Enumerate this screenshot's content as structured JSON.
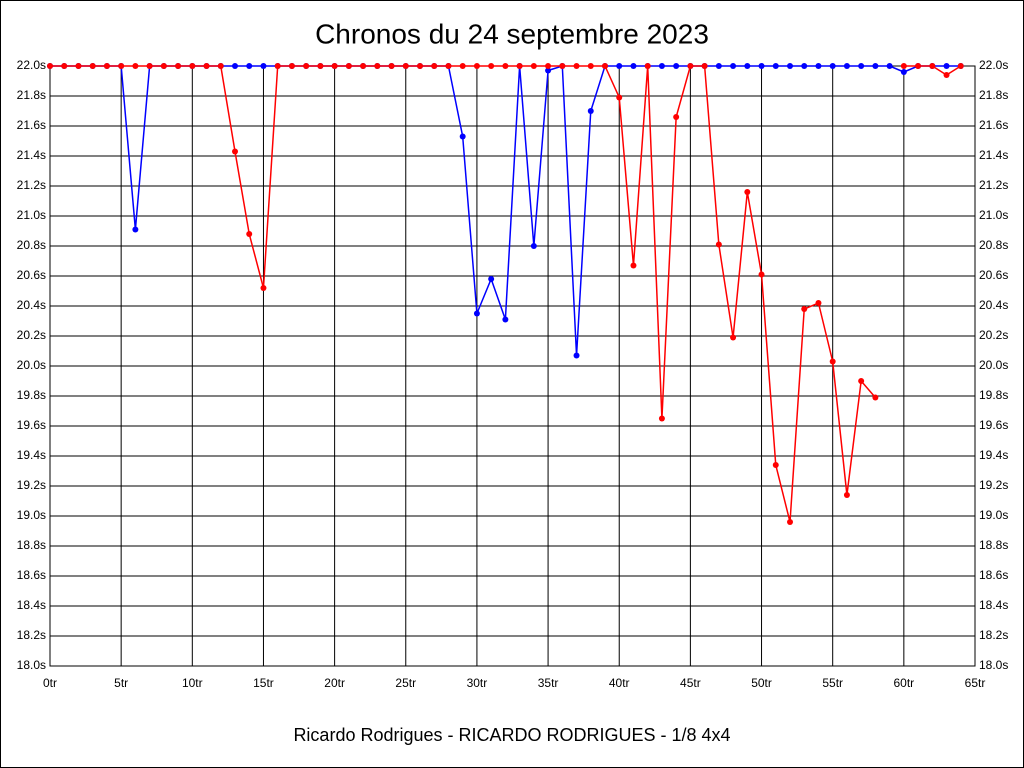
{
  "chart_data": {
    "type": "line",
    "title": "Chronos du 24 septembre 2023",
    "footer": "Ricardo Rodrigues - RICARDO RODRIGUES - 1/8 4x4",
    "x": [
      0,
      1,
      2,
      3,
      4,
      5,
      6,
      7,
      8,
      9,
      10,
      11,
      12,
      13,
      14,
      15,
      16,
      17,
      18,
      19,
      20,
      21,
      22,
      23,
      24,
      25,
      26,
      27,
      28,
      29,
      30,
      31,
      32,
      33,
      34,
      35,
      36,
      37,
      38,
      39,
      40,
      41,
      42,
      43,
      44,
      45,
      46,
      47,
      48,
      49,
      50,
      51,
      52,
      53,
      54,
      55,
      56,
      57,
      58,
      59,
      60,
      61,
      62,
      63,
      64
    ],
    "series": [
      {
        "color": "#0000ff",
        "values": [
          22.0,
          22.0,
          22.0,
          22.0,
          22.0,
          22.0,
          20.91,
          22.0,
          22.0,
          22.0,
          22.0,
          22.0,
          22.0,
          22.0,
          22.0,
          22.0,
          22.0,
          22.0,
          22.0,
          22.0,
          22.0,
          22.0,
          22.0,
          22.0,
          22.0,
          22.0,
          22.0,
          22.0,
          22.0,
          21.53,
          20.35,
          20.58,
          20.31,
          22.0,
          20.8,
          21.97,
          22.0,
          20.07,
          21.7,
          22.0,
          22.0,
          22.0,
          22.0,
          22.0,
          22.0,
          22.0,
          22.0,
          22.0,
          22.0,
          22.0,
          22.0,
          22.0,
          22.0,
          22.0,
          22.0,
          22.0,
          22.0,
          22.0,
          22.0,
          22.0,
          21.96,
          22.0,
          22.0,
          22.0,
          22.0
        ]
      },
      {
        "color": "#ff0000",
        "values": [
          22.0,
          22.0,
          22.0,
          22.0,
          22.0,
          22.0,
          22.0,
          22.0,
          22.0,
          22.0,
          22.0,
          22.0,
          22.0,
          21.43,
          20.88,
          20.52,
          22.0,
          22.0,
          22.0,
          22.0,
          22.0,
          22.0,
          22.0,
          22.0,
          22.0,
          22.0,
          22.0,
          22.0,
          22.0,
          22.0,
          22.0,
          22.0,
          22.0,
          22.0,
          22.0,
          22.0,
          22.0,
          22.0,
          22.0,
          22.0,
          21.79,
          20.67,
          22.0,
          19.65,
          21.66,
          22.0,
          22.0,
          20.81,
          20.19,
          21.16,
          20.61,
          19.34,
          18.96,
          20.38,
          20.42,
          20.03,
          19.14,
          19.9,
          19.79,
          null,
          22.0,
          22.0,
          22.0,
          21.94,
          22.0
        ]
      }
    ],
    "xlim": [
      0,
      65
    ],
    "xticks": [
      {
        "value": 0,
        "label": "0tr"
      },
      {
        "value": 5,
        "label": "5tr"
      },
      {
        "value": 10,
        "label": "10tr"
      },
      {
        "value": 15,
        "label": "15tr"
      },
      {
        "value": 20,
        "label": "20tr"
      },
      {
        "value": 25,
        "label": "25tr"
      },
      {
        "value": 30,
        "label": "30tr"
      },
      {
        "value": 35,
        "label": "35tr"
      },
      {
        "value": 40,
        "label": "40tr"
      },
      {
        "value": 45,
        "label": "45tr"
      },
      {
        "value": 50,
        "label": "50tr"
      },
      {
        "value": 55,
        "label": "55tr"
      },
      {
        "value": 60,
        "label": "60tr"
      },
      {
        "value": 65,
        "label": "65tr"
      }
    ],
    "ylim": [
      18.0,
      22.0
    ],
    "yticks": [
      {
        "value": 18.0,
        "label": "18.0s"
      },
      {
        "value": 18.2,
        "label": "18.2s"
      },
      {
        "value": 18.4,
        "label": "18.4s"
      },
      {
        "value": 18.6,
        "label": "18.6s"
      },
      {
        "value": 18.8,
        "label": "18.8s"
      },
      {
        "value": 19.0,
        "label": "19.0s"
      },
      {
        "value": 19.2,
        "label": "19.2s"
      },
      {
        "value": 19.4,
        "label": "19.4s"
      },
      {
        "value": 19.6,
        "label": "19.6s"
      },
      {
        "value": 19.8,
        "label": "19.8s"
      },
      {
        "value": 20.0,
        "label": "20.0s"
      },
      {
        "value": 20.2,
        "label": "20.2s"
      },
      {
        "value": 20.4,
        "label": "20.4s"
      },
      {
        "value": 20.6,
        "label": "20.6s"
      },
      {
        "value": 20.8,
        "label": "20.8s"
      },
      {
        "value": 21.0,
        "label": "21.0s"
      },
      {
        "value": 21.2,
        "label": "21.2s"
      },
      {
        "value": 21.4,
        "label": "21.4s"
      },
      {
        "value": 21.6,
        "label": "21.6s"
      },
      {
        "value": 21.8,
        "label": "21.8s"
      },
      {
        "value": 22.0,
        "label": "22.0s"
      }
    ],
    "grid": true
  }
}
